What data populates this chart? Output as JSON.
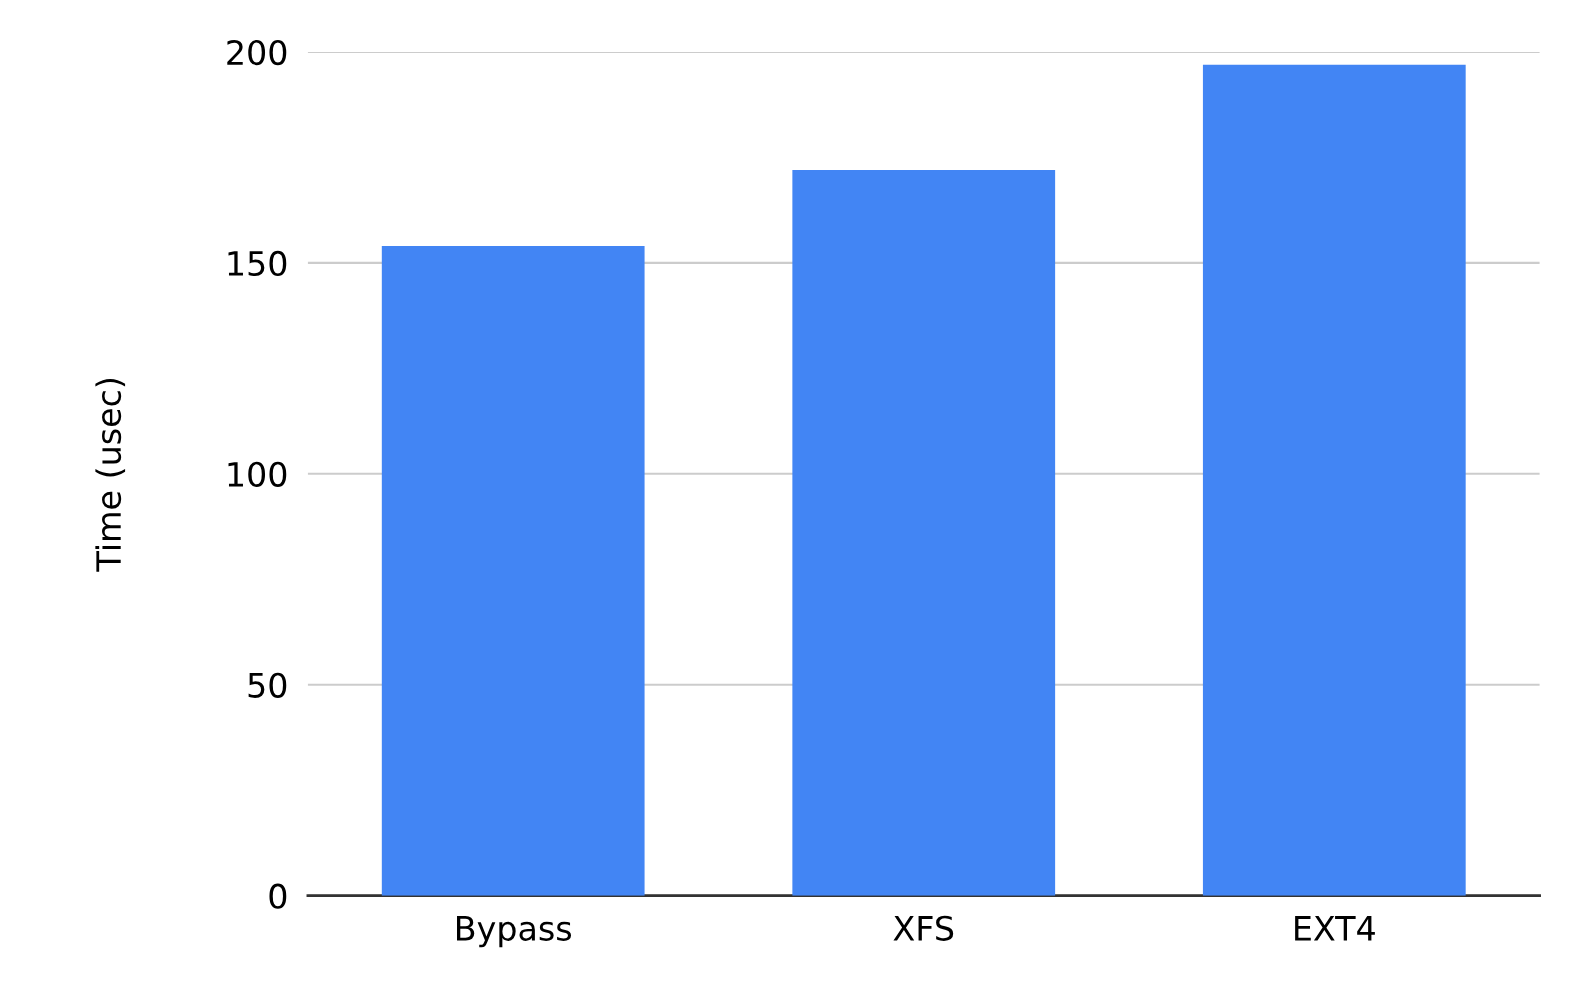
{
  "chart_data": {
    "type": "bar",
    "ylabel": "Time (usec)",
    "categories": [
      "Bypass",
      "XFS",
      "EXT4"
    ],
    "values": [
      154,
      172,
      197
    ],
    "color": "#4285f4",
    "ylim": [
      0,
      200
    ],
    "yticks": [
      0,
      50,
      100,
      150,
      200
    ],
    "grid": "y",
    "legend": false
  }
}
